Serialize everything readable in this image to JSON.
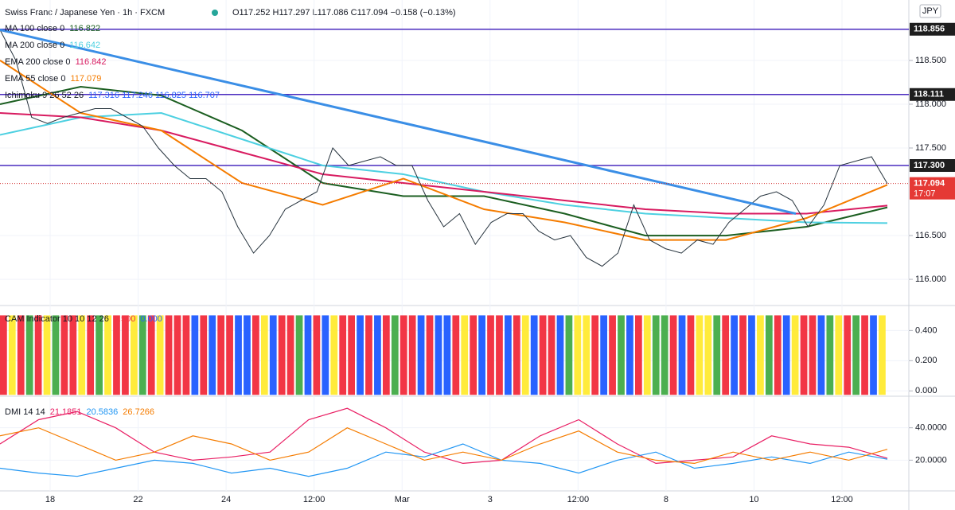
{
  "header": {
    "symbol": "Swiss Franc / Japanese Yen · 1h · FXCM",
    "ohlc": "O117.252 H117.297 L117.086 C117.094 −0.158 (−0.13%)",
    "currency": "JPY"
  },
  "chart_data": [
    {
      "type": "line",
      "legend": [
        {
          "name": "MA 100 close 0",
          "value": "116.822",
          "color": "#1b5e20"
        },
        {
          "name": "MA 200 close 0",
          "value": "116.642",
          "color": "#4dd0e1"
        },
        {
          "name": "EMA 200 close 0",
          "value": "116.842",
          "color": "#d81b60"
        },
        {
          "name": "EMA 55 close 0",
          "value": "117.079",
          "color": "#f57c00"
        },
        {
          "name": "Ichimoku 9 26 52 26",
          "value": "117.316 117.246 116.825 116.707",
          "color": "#2962ff"
        }
      ],
      "ylim": [
        115.71,
        119.19
      ],
      "yticks": [
        {
          "value": 118.5,
          "label": "118.500"
        },
        {
          "value": 118,
          "label": "118.000"
        },
        {
          "value": 117.5,
          "label": "117.500"
        },
        {
          "value": 116.5,
          "label": "116.500"
        },
        {
          "value": 116,
          "label": "116.000"
        }
      ],
      "levels": [
        {
          "value": 118.856,
          "label": "118.856"
        },
        {
          "value": 118.111,
          "label": "118.111"
        },
        {
          "value": 117.3,
          "label": "117.300"
        }
      ],
      "last": {
        "value": 117.094,
        "label": "117.094",
        "time": "17:07"
      },
      "series": [
        {
          "name": "price",
          "color": "#26333d",
          "values": [
            118.85,
            118.5,
            117.85,
            117.78,
            117.85,
            117.9,
            117.95,
            117.95,
            117.85,
            117.75,
            117.5,
            117.3,
            117.15,
            117.15,
            117.0,
            116.6,
            116.3,
            116.5,
            116.8,
            116.9,
            117.0,
            117.5,
            117.3,
            117.35,
            117.4,
            117.3,
            117.3,
            116.9,
            116.6,
            116.75,
            116.4,
            116.65,
            116.75,
            116.75,
            116.55,
            116.45,
            116.5,
            116.25,
            116.15,
            116.3,
            116.85,
            116.45,
            116.35,
            116.3,
            116.45,
            116.4,
            116.65,
            116.8,
            116.95,
            117.0,
            116.9,
            116.6,
            116.85,
            117.3,
            117.35,
            117.4,
            117.094
          ]
        },
        {
          "name": "EMA 55",
          "color": "#f57c00",
          "values": [
            118.5,
            117.9,
            117.7,
            117.1,
            116.85,
            117.15,
            116.8,
            116.65,
            116.45,
            116.45,
            116.7,
            117.079
          ]
        },
        {
          "name": "EMA 200",
          "color": "#d81b60",
          "values": [
            117.9,
            117.85,
            117.7,
            117.45,
            117.2,
            117.1,
            117.0,
            116.9,
            116.8,
            116.75,
            116.75,
            116.842
          ]
        },
        {
          "name": "MA 200",
          "color": "#4dd0e1",
          "values": [
            117.65,
            117.85,
            117.9,
            117.6,
            117.3,
            117.2,
            117.0,
            116.85,
            116.75,
            116.7,
            116.65,
            116.642
          ]
        },
        {
          "name": "MA 100",
          "color": "#1b5e20",
          "values": [
            118.0,
            118.2,
            118.1,
            117.7,
            117.1,
            116.95,
            116.95,
            116.75,
            116.5,
            116.5,
            116.6,
            116.822
          ]
        }
      ],
      "trendline": {
        "color": "#3a8ee6",
        "values": [
          118.85,
          116.75
        ]
      },
      "xticks": [
        "18",
        "22",
        "24",
        "12:00",
        "Mar",
        "3",
        "12:00",
        "8",
        "10",
        "12:00"
      ]
    },
    {
      "type": "bar",
      "title": "CAM Indicator 10 10 12 26",
      "legend_values": [
        "0.500",
        "0.000"
      ],
      "ylim": [
        -0.03,
        0.56
      ],
      "yticks": [
        {
          "value": 0.4,
          "label": "0.400"
        },
        {
          "value": 0.2,
          "label": "0.200"
        },
        {
          "value": 0,
          "label": "0.000"
        }
      ],
      "palette": [
        "#f23645",
        "#ffeb3b",
        "#4caf50",
        "#2962ff"
      ],
      "color_index": [
        0,
        1,
        0,
        2,
        0,
        1,
        2,
        0,
        0,
        1,
        0,
        2,
        1,
        0,
        0,
        1,
        2,
        0,
        1,
        0,
        0,
        0,
        3,
        0,
        3,
        0,
        0,
        3,
        3,
        0,
        1,
        3,
        0,
        0,
        2,
        3,
        0,
        3,
        1,
        0,
        0,
        3,
        0,
        3,
        0,
        2,
        0,
        0,
        3,
        0,
        3,
        3,
        0,
        1,
        0,
        3,
        0,
        0,
        3,
        0,
        1,
        3,
        0,
        0,
        3,
        2,
        1,
        1,
        0,
        3,
        0,
        2,
        3,
        0,
        1,
        2,
        2,
        0,
        3,
        0,
        1,
        1,
        2,
        0,
        3,
        0,
        3,
        1,
        2,
        0,
        3,
        1,
        0,
        0,
        3,
        2,
        1,
        0,
        2,
        0,
        3,
        1
      ],
      "values": [
        0.5,
        0.5,
        0.5,
        0.5,
        0.5,
        0.5,
        0.5,
        0.5,
        0.5,
        0.5,
        0.5,
        0.5,
        0.5,
        0.5,
        0.5,
        0.5,
        0.5,
        0.5,
        0.5,
        0.5,
        0.5,
        0.5,
        0.5,
        0.5,
        0.5,
        0.5,
        0.5,
        0.5,
        0.5,
        0.5,
        0.5,
        0.5,
        0.5,
        0.5,
        0.5,
        0.5,
        0.5,
        0.5,
        0.5,
        0.5,
        0.5,
        0.5,
        0.5,
        0.5,
        0.5,
        0.5,
        0.5,
        0.5,
        0.5,
        0.5,
        0.5,
        0.5,
        0.5,
        0.5,
        0.5,
        0.5,
        0.5,
        0.5,
        0.5,
        0.5,
        0.5,
        0.5,
        0.5,
        0.5,
        0.5,
        0.5,
        0.5,
        0.5,
        0.5,
        0.5,
        0.5,
        0.5,
        0.5,
        0.5,
        0.5,
        0.5,
        0.5,
        0.5,
        0.5,
        0.5,
        0.5,
        0.5,
        0.5,
        0.5,
        0.5,
        0.5,
        0.5,
        0.5,
        0.5,
        0.5,
        0.5,
        0.5,
        0.5,
        0.5,
        0.5,
        0.5,
        0.5,
        0.5,
        0.5,
        0.5,
        0.5,
        0.5
      ]
    },
    {
      "type": "line",
      "title": "DMI 14 14",
      "ylim": [
        1.5,
        59
      ],
      "yticks": [
        {
          "value": 40,
          "label": "40.0000"
        },
        {
          "value": 20,
          "label": "20.0000"
        }
      ],
      "series": [
        {
          "name": "21.1851",
          "color": "#e91e63",
          "values": [
            30,
            45,
            50,
            40,
            25,
            20,
            22,
            25,
            45,
            52,
            40,
            25,
            18,
            20,
            35,
            45,
            30,
            18,
            20,
            22,
            35,
            30,
            28,
            21.1851
          ]
        },
        {
          "name": "20.5836",
          "color": "#2196f3",
          "values": [
            15,
            12,
            10,
            15,
            20,
            18,
            12,
            15,
            10,
            15,
            25,
            22,
            30,
            20,
            18,
            12,
            20,
            25,
            15,
            18,
            22,
            18,
            25,
            20.5836
          ]
        },
        {
          "name": "26.7266",
          "color": "#f57c00",
          "values": [
            35,
            40,
            30,
            20,
            25,
            35,
            30,
            20,
            25,
            40,
            30,
            20,
            25,
            20,
            30,
            38,
            25,
            20,
            18,
            25,
            20,
            25,
            20,
            26.7266
          ]
        }
      ]
    }
  ]
}
